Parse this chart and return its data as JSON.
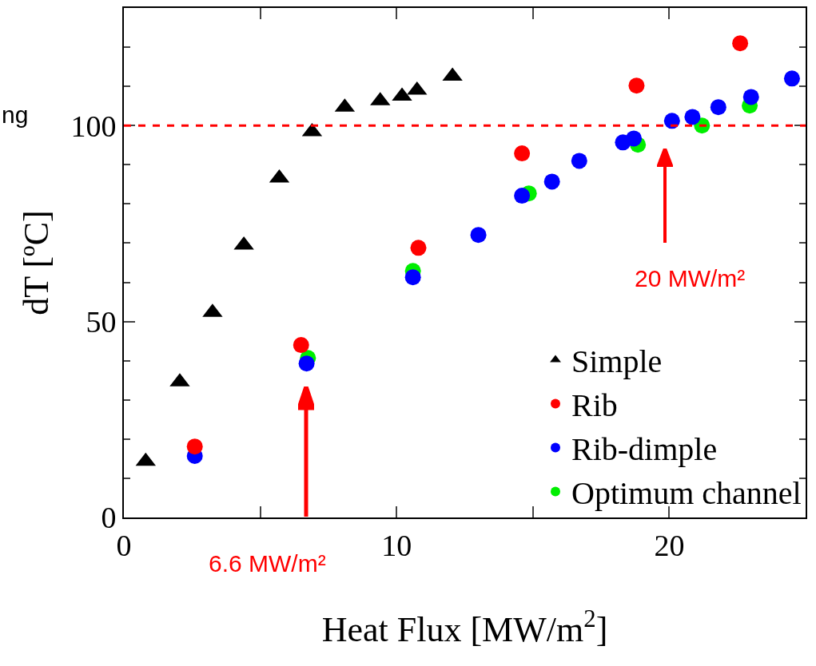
{
  "chart_data": {
    "type": "scatter",
    "xlabel": "Heat Flux [MW/m$^{2}$]",
    "ylabel": "dT [ºC]",
    "xlim": [
      0,
      25
    ],
    "xticks": [
      0,
      10,
      20
    ],
    "ylim": [
      0,
      130
    ],
    "yticks": [
      0,
      50,
      100
    ],
    "grid": false,
    "legend": "bottom right",
    "series": [
      {
        "name": "Optimum channel",
        "color": "#00ee00",
        "marker": "circle",
        "x": [
          6.75,
          10.6,
          14.85,
          18.85,
          21.2,
          22.95
        ],
        "values": [
          40.7,
          62.9,
          82.7,
          95.1,
          100,
          105.1
        ]
      },
      {
        "name": "Rib-dimple",
        "color": "#0000ff",
        "marker": "circle",
        "x": [
          2.6,
          6.7,
          10.6,
          13.0,
          14.6,
          15.7,
          16.7,
          18.3,
          18.7,
          20.1,
          20.85,
          21.8,
          23.0,
          24.5
        ],
        "values": [
          15.7,
          39.3,
          61.3,
          72.1,
          82.1,
          85.7,
          91.0,
          95.7,
          96.7,
          101.2,
          102.2,
          104.7,
          107.3,
          112
        ]
      },
      {
        "name": "Rib",
        "color": "#ff0000",
        "marker": "circle",
        "x": [
          2.6,
          6.5,
          10.8,
          14.6,
          18.8,
          22.6
        ],
        "values": [
          18.1,
          44,
          68.8,
          92.9,
          110.2,
          121
        ]
      },
      {
        "name": "Simple",
        "color": "#000000",
        "marker": "triangle",
        "x": [
          0.8,
          2.05,
          3.25,
          4.4,
          5.7,
          6.9,
          8.1,
          9.4,
          10.2,
          10.75,
          12.05
        ],
        "values": [
          14.3,
          34.6,
          52.3,
          69.5,
          86.6,
          98.4,
          104.7,
          106.3,
          107.5,
          109,
          112.6
        ]
      }
    ],
    "ref_lines": [
      {
        "axis": "y",
        "value": 100,
        "color": "#ff0000",
        "line_style": "dashed"
      }
    ],
    "annotations": [
      "6.6 MW/m²",
      "20 MW/m²",
      "ng"
    ]
  }
}
